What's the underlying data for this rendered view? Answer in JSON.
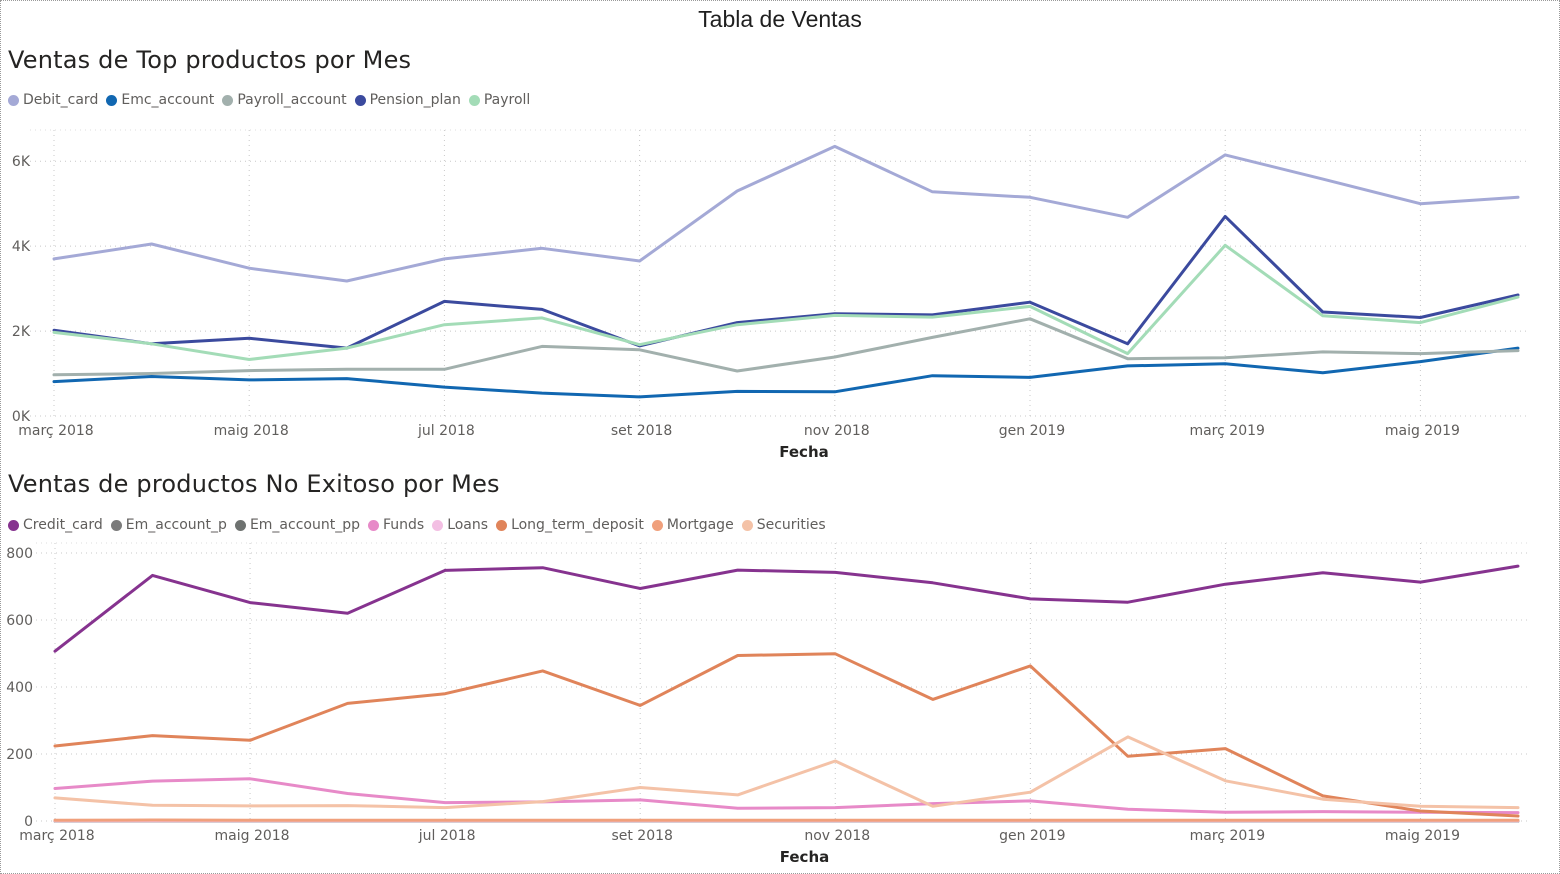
{
  "page_title": "Tabla de Ventas",
  "chart_data": [
    {
      "type": "line",
      "title": "Ventas de Top productos por Mes",
      "xlabel": "Fecha",
      "ylabel": "",
      "ylim": [
        0,
        6500
      ],
      "grid": true,
      "legend_position": "top-left",
      "y_ticks": [
        0,
        2000,
        4000,
        6000
      ],
      "y_tick_labels": [
        "0K",
        "2K",
        "4K",
        "6K"
      ],
      "x": [
        "2018-03",
        "2018-04",
        "2018-05",
        "2018-06",
        "2018-07",
        "2018-08",
        "2018-09",
        "2018-10",
        "2018-11",
        "2018-12",
        "2019-01",
        "2019-02",
        "2019-03",
        "2019-04",
        "2019-05",
        "2019-06"
      ],
      "x_tick_labels": [
        "març 2018",
        "maig 2018",
        "jul 2018",
        "set 2018",
        "nov 2018",
        "gen 2019",
        "març 2019",
        "maig 2019"
      ],
      "series": [
        {
          "name": "Debit_card",
          "color": "#a4a9d6",
          "values": [
            3700,
            4050,
            3480,
            3180,
            3700,
            3950,
            3650,
            5300,
            6350,
            5280,
            5150,
            4680,
            6150,
            5580,
            5000,
            5150
          ]
        },
        {
          "name": "Emc_account",
          "color": "#1167b1",
          "values": [
            810,
            930,
            850,
            880,
            680,
            540,
            450,
            580,
            570,
            950,
            910,
            1180,
            1230,
            1020,
            1280,
            1600
          ]
        },
        {
          "name": "Payroll_account",
          "color": "#a2b0ad",
          "values": [
            970,
            1000,
            1070,
            1100,
            1100,
            1640,
            1560,
            1060,
            1390,
            1850,
            2290,
            1350,
            1370,
            1510,
            1470,
            1540
          ]
        },
        {
          "name": "Pension_plan",
          "color": "#3b4a9e",
          "values": [
            2020,
            1700,
            1830,
            1600,
            2700,
            2510,
            1650,
            2200,
            2410,
            2380,
            2680,
            1700,
            4700,
            2450,
            2320,
            2850
          ]
        },
        {
          "name": "Payroll",
          "color": "#a3dcb7",
          "values": [
            1970,
            1700,
            1330,
            1600,
            2150,
            2310,
            1680,
            2150,
            2370,
            2330,
            2580,
            1470,
            4020,
            2360,
            2200,
            2800
          ]
        }
      ]
    },
    {
      "type": "line",
      "title": "Ventas de productos No Exitoso por Mes",
      "xlabel": "Fecha",
      "ylabel": "",
      "ylim": [
        0,
        800
      ],
      "grid": true,
      "legend_position": "top-left",
      "y_ticks": [
        0,
        200,
        400,
        600,
        800
      ],
      "y_tick_labels": [
        "0",
        "200",
        "400",
        "600",
        "800"
      ],
      "x": [
        "2018-03",
        "2018-04",
        "2018-05",
        "2018-06",
        "2018-07",
        "2018-08",
        "2018-09",
        "2018-10",
        "2018-11",
        "2018-12",
        "2019-01",
        "2019-02",
        "2019-03",
        "2019-04",
        "2019-05",
        "2019-06"
      ],
      "x_tick_labels": [
        "març 2018",
        "maig 2018",
        "jul 2018",
        "set 2018",
        "nov 2018",
        "gen 2019",
        "març 2019",
        "maig 2019"
      ],
      "series": [
        {
          "name": "Credit_card",
          "color": "#86338f",
          "values": [
            507,
            733,
            652,
            620,
            748,
            756,
            694,
            749,
            742,
            711,
            663,
            653,
            707,
            741,
            713,
            761
          ]
        },
        {
          "name": "Em_account_p",
          "color": "#7b7b7b",
          "values": [
            0,
            0,
            0,
            0,
            0,
            0,
            0,
            0,
            0,
            0,
            0,
            0,
            0,
            0,
            0,
            0
          ]
        },
        {
          "name": "Em_account_pp",
          "color": "#6e7270",
          "values": [
            0,
            0,
            0,
            0,
            0,
            0,
            0,
            0,
            0,
            0,
            0,
            0,
            0,
            0,
            0,
            0
          ]
        },
        {
          "name": "Funds",
          "color": "#e78ac8",
          "values": [
            97,
            119,
            126,
            82,
            55,
            57,
            63,
            38,
            40,
            52,
            60,
            35,
            26,
            28,
            26,
            25
          ]
        },
        {
          "name": "Loans",
          "color": "#f3bfe3",
          "values": [
            1,
            1,
            1,
            1,
            1,
            1,
            1,
            1,
            1,
            1,
            1,
            1,
            1,
            1,
            1,
            1
          ]
        },
        {
          "name": "Long_term_deposit",
          "color": "#e0845a",
          "values": [
            224,
            255,
            241,
            351,
            380,
            448,
            345,
            494,
            499,
            363,
            463,
            193,
            216,
            75,
            30,
            15
          ]
        },
        {
          "name": "Mortgage",
          "color": "#f0a07c",
          "values": [
            2,
            3,
            2,
            2,
            2,
            2,
            2,
            2,
            2,
            2,
            2,
            2,
            2,
            2,
            2,
            2
          ]
        },
        {
          "name": "Securities",
          "color": "#f4c2a7",
          "values": [
            69,
            47,
            45,
            46,
            40,
            58,
            100,
            78,
            179,
            44,
            86,
            251,
            120,
            65,
            44,
            40
          ]
        }
      ]
    }
  ]
}
